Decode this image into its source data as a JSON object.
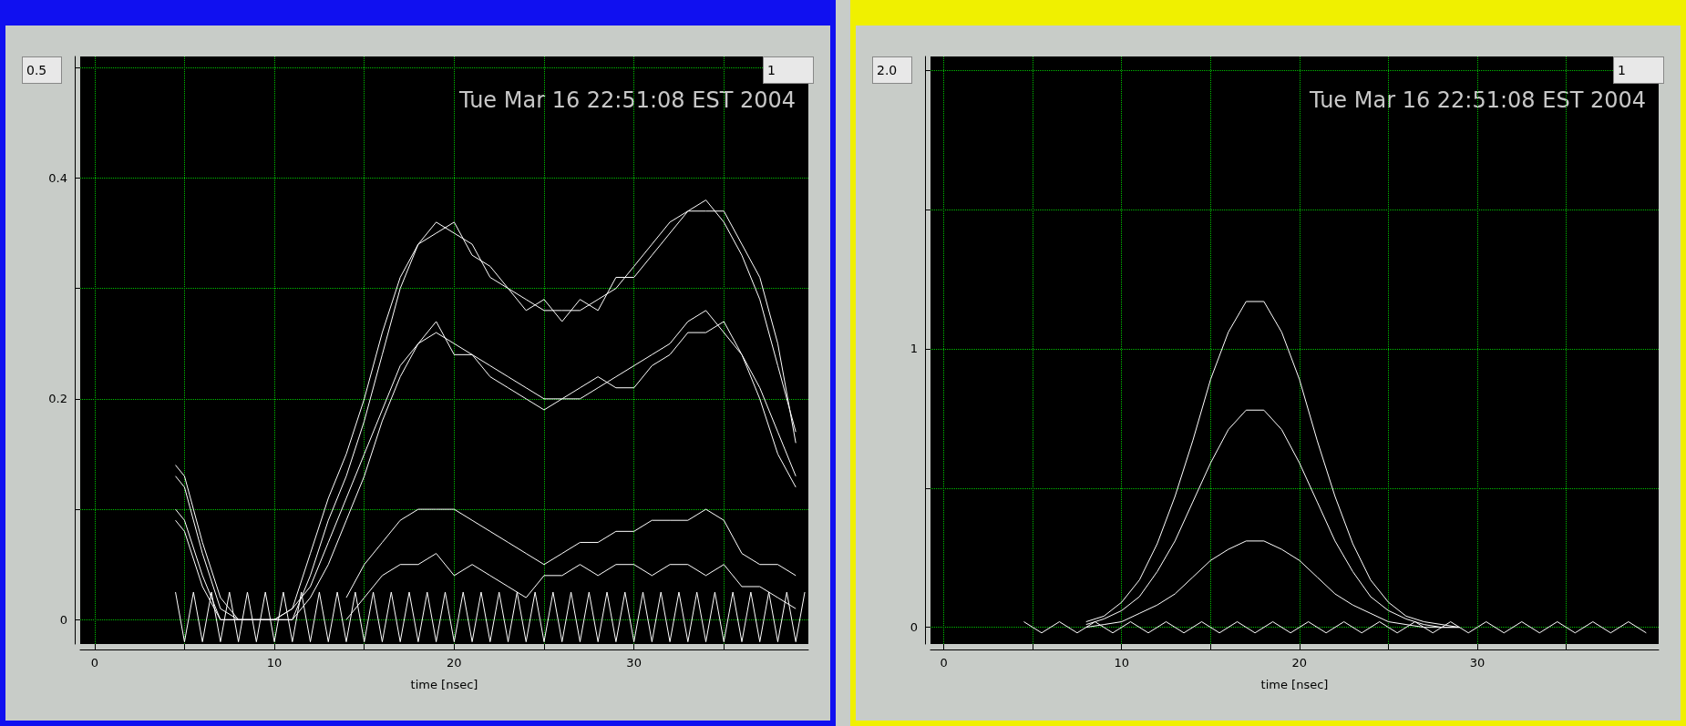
{
  "chart_data": [
    {
      "type": "line",
      "xlabel": "time [nsec]",
      "annotations": [
        "Tue Mar 16 22:51:08 EST 2004",
        "0.5",
        "1"
      ],
      "xlim": [
        -0.8,
        39.7
      ],
      "ylim": [
        -0.022,
        0.51
      ],
      "xticks": [
        0,
        {
          "value": 5,
          "label": null
        },
        10,
        {
          "value": 15,
          "label": null
        },
        20,
        {
          "value": 25,
          "label": null
        },
        30,
        {
          "value": 35,
          "label": null
        }
      ],
      "yticks": [
        0,
        {
          "value": 0.1,
          "label": null
        },
        0.2,
        {
          "value": 0.3,
          "label": null
        },
        0.4,
        {
          "value": 0.5,
          "label": null
        }
      ],
      "grid": true,
      "line_style": "solid",
      "marker": "none",
      "series": [
        {
          "color": "#ffffff",
          "x": [
            4.5,
            5,
            5.5,
            6,
            6.5,
            7,
            7.5,
            8,
            8.5,
            9,
            9.5,
            10,
            10.5,
            11,
            11.5,
            12,
            12.5,
            13,
            13.5,
            14,
            14.5,
            15,
            15.5,
            16,
            16.5,
            17,
            17.5,
            18,
            18.5,
            19,
            19.5,
            20,
            20.5,
            21,
            21.5,
            22,
            22.5,
            23,
            23.5,
            24,
            24.5,
            25,
            25.5,
            26,
            26.5,
            27,
            27.5,
            28,
            28.5,
            29,
            29.5,
            30,
            30.5,
            31,
            31.5,
            32,
            32.5,
            33,
            33.5,
            34,
            34.5,
            35,
            35.5,
            36,
            36.5,
            37,
            37.5,
            38,
            38.5,
            39,
            39.5
          ],
          "values": [
            0.025,
            -0.02,
            0.025,
            -0.02,
            0.025,
            -0.02,
            0.025,
            -0.02,
            0.025,
            -0.02,
            0.025,
            -0.02,
            0.025,
            -0.02,
            0.025,
            -0.02,
            0.025,
            -0.02,
            0.025,
            -0.02,
            0.025,
            -0.02,
            0.025,
            -0.02,
            0.025,
            -0.02,
            0.025,
            -0.02,
            0.025,
            -0.02,
            0.025,
            -0.02,
            0.025,
            -0.02,
            0.025,
            -0.02,
            0.025,
            -0.02,
            0.025,
            -0.02,
            0.025,
            -0.02,
            0.025,
            -0.02,
            0.025,
            -0.02,
            0.025,
            -0.02,
            0.025,
            -0.02,
            0.025,
            -0.02,
            0.025,
            -0.02,
            0.025,
            -0.02,
            0.025,
            -0.02,
            0.025,
            -0.02,
            0.025,
            -0.02,
            0.025,
            -0.02,
            0.025,
            -0.02,
            0.025,
            -0.02,
            0.025,
            -0.02,
            0.025
          ]
        },
        {
          "color": "#ffffff",
          "x": [
            4.5,
            5,
            6,
            7,
            8,
            9,
            10,
            11,
            12,
            13,
            14,
            15,
            16,
            17,
            18,
            19,
            20,
            21,
            22,
            23,
            24,
            25,
            26,
            27,
            28,
            29,
            30,
            31,
            32,
            33,
            34,
            35,
            36,
            37,
            38,
            39
          ],
          "values": [
            0.13,
            0.12,
            0.06,
            0.01,
            0,
            0,
            0,
            0.01,
            0.06,
            0.11,
            0.15,
            0.2,
            0.26,
            0.31,
            0.34,
            0.36,
            0.35,
            0.34,
            0.31,
            0.3,
            0.29,
            0.28,
            0.28,
            0.28,
            0.29,
            0.3,
            0.32,
            0.34,
            0.36,
            0.37,
            0.38,
            0.36,
            0.33,
            0.29,
            0.23,
            0.17
          ]
        },
        {
          "color": "#ffffff",
          "x": [
            4.5,
            5,
            6,
            7,
            8,
            9,
            10,
            11,
            12,
            13,
            14,
            15,
            16,
            17,
            18,
            19,
            20,
            21,
            22,
            23,
            24,
            25,
            26,
            27,
            28,
            29,
            30,
            31,
            32,
            33,
            34,
            35,
            36,
            37,
            38,
            39
          ],
          "values": [
            0.14,
            0.13,
            0.07,
            0.02,
            0,
            0,
            0,
            0,
            0.04,
            0.09,
            0.13,
            0.18,
            0.24,
            0.3,
            0.34,
            0.35,
            0.36,
            0.33,
            0.32,
            0.3,
            0.28,
            0.29,
            0.27,
            0.29,
            0.28,
            0.31,
            0.31,
            0.33,
            0.35,
            0.37,
            0.37,
            0.37,
            0.34,
            0.31,
            0.25,
            0.16
          ]
        },
        {
          "color": "#ffffff",
          "x": [
            4.5,
            5,
            6,
            7,
            8,
            9,
            10,
            11,
            12,
            13,
            14,
            15,
            16,
            17,
            18,
            19,
            20,
            21,
            22,
            23,
            24,
            25,
            26,
            27,
            28,
            29,
            30,
            31,
            32,
            33,
            34,
            35,
            36,
            37,
            38,
            39
          ],
          "values": [
            0.1,
            0.09,
            0.04,
            0,
            0,
            0,
            0,
            0.01,
            0.03,
            0.07,
            0.11,
            0.15,
            0.19,
            0.23,
            0.25,
            0.26,
            0.25,
            0.24,
            0.23,
            0.22,
            0.21,
            0.2,
            0.2,
            0.2,
            0.21,
            0.22,
            0.23,
            0.24,
            0.25,
            0.27,
            0.28,
            0.26,
            0.24,
            0.2,
            0.15,
            0.12
          ]
        },
        {
          "color": "#ffffff",
          "x": [
            4.5,
            5,
            6,
            7,
            8,
            9,
            10,
            11,
            12,
            13,
            14,
            15,
            16,
            17,
            18,
            19,
            20,
            21,
            22,
            23,
            24,
            25,
            26,
            27,
            28,
            29,
            30,
            31,
            32,
            33,
            34,
            35,
            36,
            37,
            38,
            39
          ],
          "values": [
            0.09,
            0.08,
            0.03,
            0,
            0,
            0,
            0,
            0,
            0.02,
            0.05,
            0.09,
            0.13,
            0.18,
            0.22,
            0.25,
            0.27,
            0.24,
            0.24,
            0.22,
            0.21,
            0.2,
            0.19,
            0.2,
            0.21,
            0.22,
            0.21,
            0.21,
            0.23,
            0.24,
            0.26,
            0.26,
            0.27,
            0.24,
            0.21,
            0.17,
            0.13
          ]
        },
        {
          "color": "#ffffff",
          "x": [
            14,
            15,
            16,
            17,
            18,
            19,
            20,
            21,
            22,
            23,
            24,
            25,
            26,
            27,
            28,
            29,
            30,
            31,
            32,
            33,
            34,
            35,
            36,
            37,
            38,
            39
          ],
          "values": [
            0.02,
            0.05,
            0.07,
            0.09,
            0.1,
            0.1,
            0.1,
            0.09,
            0.08,
            0.07,
            0.06,
            0.05,
            0.06,
            0.07,
            0.07,
            0.08,
            0.08,
            0.09,
            0.09,
            0.09,
            0.1,
            0.09,
            0.06,
            0.05,
            0.05,
            0.04
          ]
        },
        {
          "color": "#ffffff",
          "x": [
            14,
            15,
            16,
            17,
            18,
            19,
            20,
            21,
            22,
            23,
            24,
            25,
            26,
            27,
            28,
            29,
            30,
            31,
            32,
            33,
            34,
            35,
            36,
            37,
            38,
            39
          ],
          "values": [
            0,
            0.02,
            0.04,
            0.05,
            0.05,
            0.06,
            0.04,
            0.05,
            0.04,
            0.03,
            0.02,
            0.04,
            0.04,
            0.05,
            0.04,
            0.05,
            0.05,
            0.04,
            0.05,
            0.05,
            0.04,
            0.05,
            0.03,
            0.03,
            0.02,
            0.01
          ]
        }
      ]
    },
    {
      "type": "line",
      "xlabel": "time [nsec]",
      "annotations": [
        "Tue Mar 16 22:51:08 EST 2004",
        "2.0",
        "1"
      ],
      "xlim": [
        -0.75,
        40.2
      ],
      "ylim": [
        -0.06,
        2.05
      ],
      "xticks": [
        0,
        {
          "value": 5,
          "label": null
        },
        10,
        {
          "value": 15,
          "label": null
        },
        20,
        {
          "value": 25,
          "label": null
        },
        30,
        {
          "value": 35,
          "label": null
        }
      ],
      "yticks": [
        0,
        {
          "value": 0.5,
          "label": null
        },
        1,
        {
          "value": 1.5,
          "label": null
        },
        {
          "value": 2,
          "label": null
        }
      ],
      "grid": true,
      "line_style": "solid",
      "marker": "none",
      "series": [
        {
          "color": "#ffffff",
          "x": [
            4.5,
            5.5,
            6.5,
            7.5,
            8.5,
            9.5,
            10.5,
            11.5,
            12.5,
            13.5,
            14.5,
            15.5,
            16.5,
            17.5,
            18.5,
            19.5,
            20.5,
            21.5,
            22.5,
            23.5,
            24.5,
            25.5,
            26.5,
            27.5,
            28.5,
            29.5,
            30.5,
            31.5,
            32.5,
            33.5,
            34.5,
            35.5,
            36.5,
            37.5,
            38.5,
            39.5
          ],
          "values": [
            0.02,
            -0.02,
            0.02,
            -0.02,
            0.02,
            -0.02,
            0.02,
            -0.02,
            0.02,
            -0.02,
            0.02,
            -0.02,
            0.02,
            -0.02,
            0.02,
            -0.02,
            0.02,
            -0.02,
            0.02,
            -0.02,
            0.02,
            -0.02,
            0.02,
            -0.02,
            0.02,
            -0.02,
            0.02,
            -0.02,
            0.02,
            -0.02,
            0.02,
            -0.02,
            0.02,
            -0.02,
            0.02,
            -0.02
          ]
        },
        {
          "color": "#ffffff",
          "x": [
            8,
            9,
            10,
            11,
            12,
            13,
            14,
            15,
            16,
            17,
            18,
            19,
            20,
            21,
            22,
            23,
            24,
            25,
            26,
            27,
            28,
            29
          ],
          "values": [
            0.02,
            0.04,
            0.09,
            0.17,
            0.3,
            0.47,
            0.67,
            0.89,
            1.06,
            1.17,
            1.17,
            1.06,
            0.89,
            0.67,
            0.47,
            0.3,
            0.17,
            0.09,
            0.04,
            0.02,
            0.01,
            0
          ]
        },
        {
          "color": "#ffffff",
          "x": [
            8,
            9,
            10,
            11,
            12,
            13,
            14,
            15,
            16,
            17,
            18,
            19,
            20,
            21,
            22,
            23,
            24,
            25,
            26,
            27,
            28,
            29
          ],
          "values": [
            0.01,
            0.03,
            0.06,
            0.11,
            0.2,
            0.31,
            0.45,
            0.59,
            0.71,
            0.78,
            0.78,
            0.71,
            0.59,
            0.45,
            0.31,
            0.2,
            0.11,
            0.06,
            0.03,
            0.01,
            0,
            0
          ]
        },
        {
          "color": "#ffffff",
          "x": [
            8,
            9,
            10,
            11,
            12,
            13,
            14,
            15,
            16,
            17,
            18,
            19,
            20,
            21,
            22,
            23,
            24,
            25,
            26,
            27,
            28,
            29
          ],
          "values": [
            0,
            0.01,
            0.02,
            0.05,
            0.08,
            0.12,
            0.18,
            0.24,
            0.28,
            0.31,
            0.31,
            0.28,
            0.24,
            0.18,
            0.12,
            0.08,
            0.05,
            0.02,
            0.01,
            0,
            0,
            0
          ]
        }
      ]
    }
  ]
}
